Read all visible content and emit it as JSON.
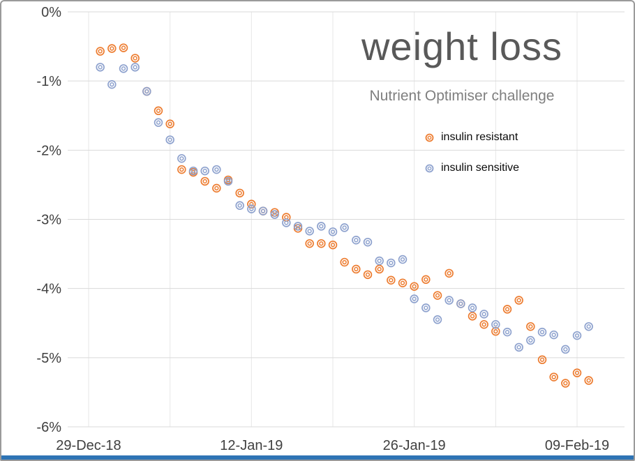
{
  "window": {
    "background": "#ffffff",
    "border_color": "#9a9a9a",
    "bottom_bar_color": "#2e74b5"
  },
  "title": "weight loss",
  "subtitle": "Nutrient Optimiser challenge",
  "legend": [
    {
      "label": "insulin resistant",
      "color": "#ED7D31"
    },
    {
      "label": "insulin sensitive",
      "color": "#8EA2CE"
    }
  ],
  "chart_data": {
    "type": "scatter",
    "title": "weight loss",
    "subtitle": "Nutrient Optimiser challenge",
    "xlabel": "",
    "ylabel": "",
    "marker_style": "open-double-circle",
    "grid": true,
    "legend_position": "upper-right",
    "axis_color": "#404040",
    "gridline_color": "#d9d9d9",
    "minor_gridline_color": "#e7e7e7",
    "ylim": [
      -6,
      0
    ],
    "y_tick_labels": [
      "0%",
      "-1%",
      "-2%",
      "-3%",
      "-4%",
      "-5%",
      "-6%"
    ],
    "y_tick_values": [
      0,
      -1,
      -2,
      -3,
      -4,
      -5,
      -6
    ],
    "x_tick_labels": [
      "29-Dec-18",
      "12-Jan-19",
      "26-Jan-19",
      "09-Feb-19"
    ],
    "x_tick_days": [
      0,
      14,
      28,
      42
    ],
    "grid_x_days": [
      0,
      7,
      14,
      21,
      28,
      35,
      42
    ],
    "x_unit": "days after 29-Dec-18",
    "series": [
      {
        "name": "insulin resistant",
        "color": "#ED7D31",
        "x_days": [
          1,
          2,
          3,
          4,
          5,
          6,
          7,
          8,
          9,
          10,
          11,
          12,
          13,
          14,
          15,
          16,
          17,
          18,
          19,
          20,
          21,
          22,
          23,
          24,
          25,
          26,
          27,
          28,
          29,
          30,
          31,
          32,
          33,
          34,
          35,
          36,
          37,
          38,
          39,
          40,
          41,
          42,
          43
        ],
        "values": [
          -0.57,
          -0.53,
          -0.52,
          -0.67,
          -1.15,
          -1.43,
          -1.62,
          -2.28,
          -2.32,
          -2.45,
          -2.55,
          -2.43,
          -2.62,
          -2.78,
          -2.88,
          -2.9,
          -2.97,
          -3.13,
          -3.35,
          -3.35,
          -3.37,
          -3.62,
          -3.72,
          -3.8,
          -3.72,
          -3.88,
          -3.92,
          -3.97,
          -3.87,
          -4.1,
          -3.78,
          -4.22,
          -4.4,
          -4.52,
          -4.62,
          -4.3,
          -4.17,
          -4.55,
          -5.03,
          -5.28,
          -5.37,
          -5.22,
          -5.33
        ]
      },
      {
        "name": "insulin sensitive",
        "color": "#8EA2CE",
        "x_days": [
          1,
          2,
          3,
          4,
          5,
          6,
          7,
          8,
          9,
          10,
          11,
          12,
          13,
          14,
          15,
          16,
          17,
          18,
          19,
          20,
          21,
          22,
          23,
          24,
          25,
          26,
          27,
          28,
          29,
          30,
          31,
          32,
          33,
          34,
          35,
          36,
          37,
          38,
          39,
          40,
          41,
          42,
          43
        ],
        "values": [
          -0.8,
          -1.05,
          -0.82,
          -0.8,
          -1.15,
          -1.6,
          -1.85,
          -2.12,
          -2.3,
          -2.3,
          -2.28,
          -2.45,
          -2.8,
          -2.85,
          -2.88,
          -2.93,
          -3.05,
          -3.1,
          -3.17,
          -3.1,
          -3.18,
          -3.12,
          -3.3,
          -3.33,
          -3.6,
          -3.63,
          -3.58,
          -4.15,
          -4.28,
          -4.45,
          -4.17,
          -4.22,
          -4.28,
          -4.37,
          -4.52,
          -4.63,
          -4.85,
          -4.75,
          -4.63,
          -4.67,
          -4.88,
          -4.68,
          -4.55
        ]
      }
    ]
  }
}
